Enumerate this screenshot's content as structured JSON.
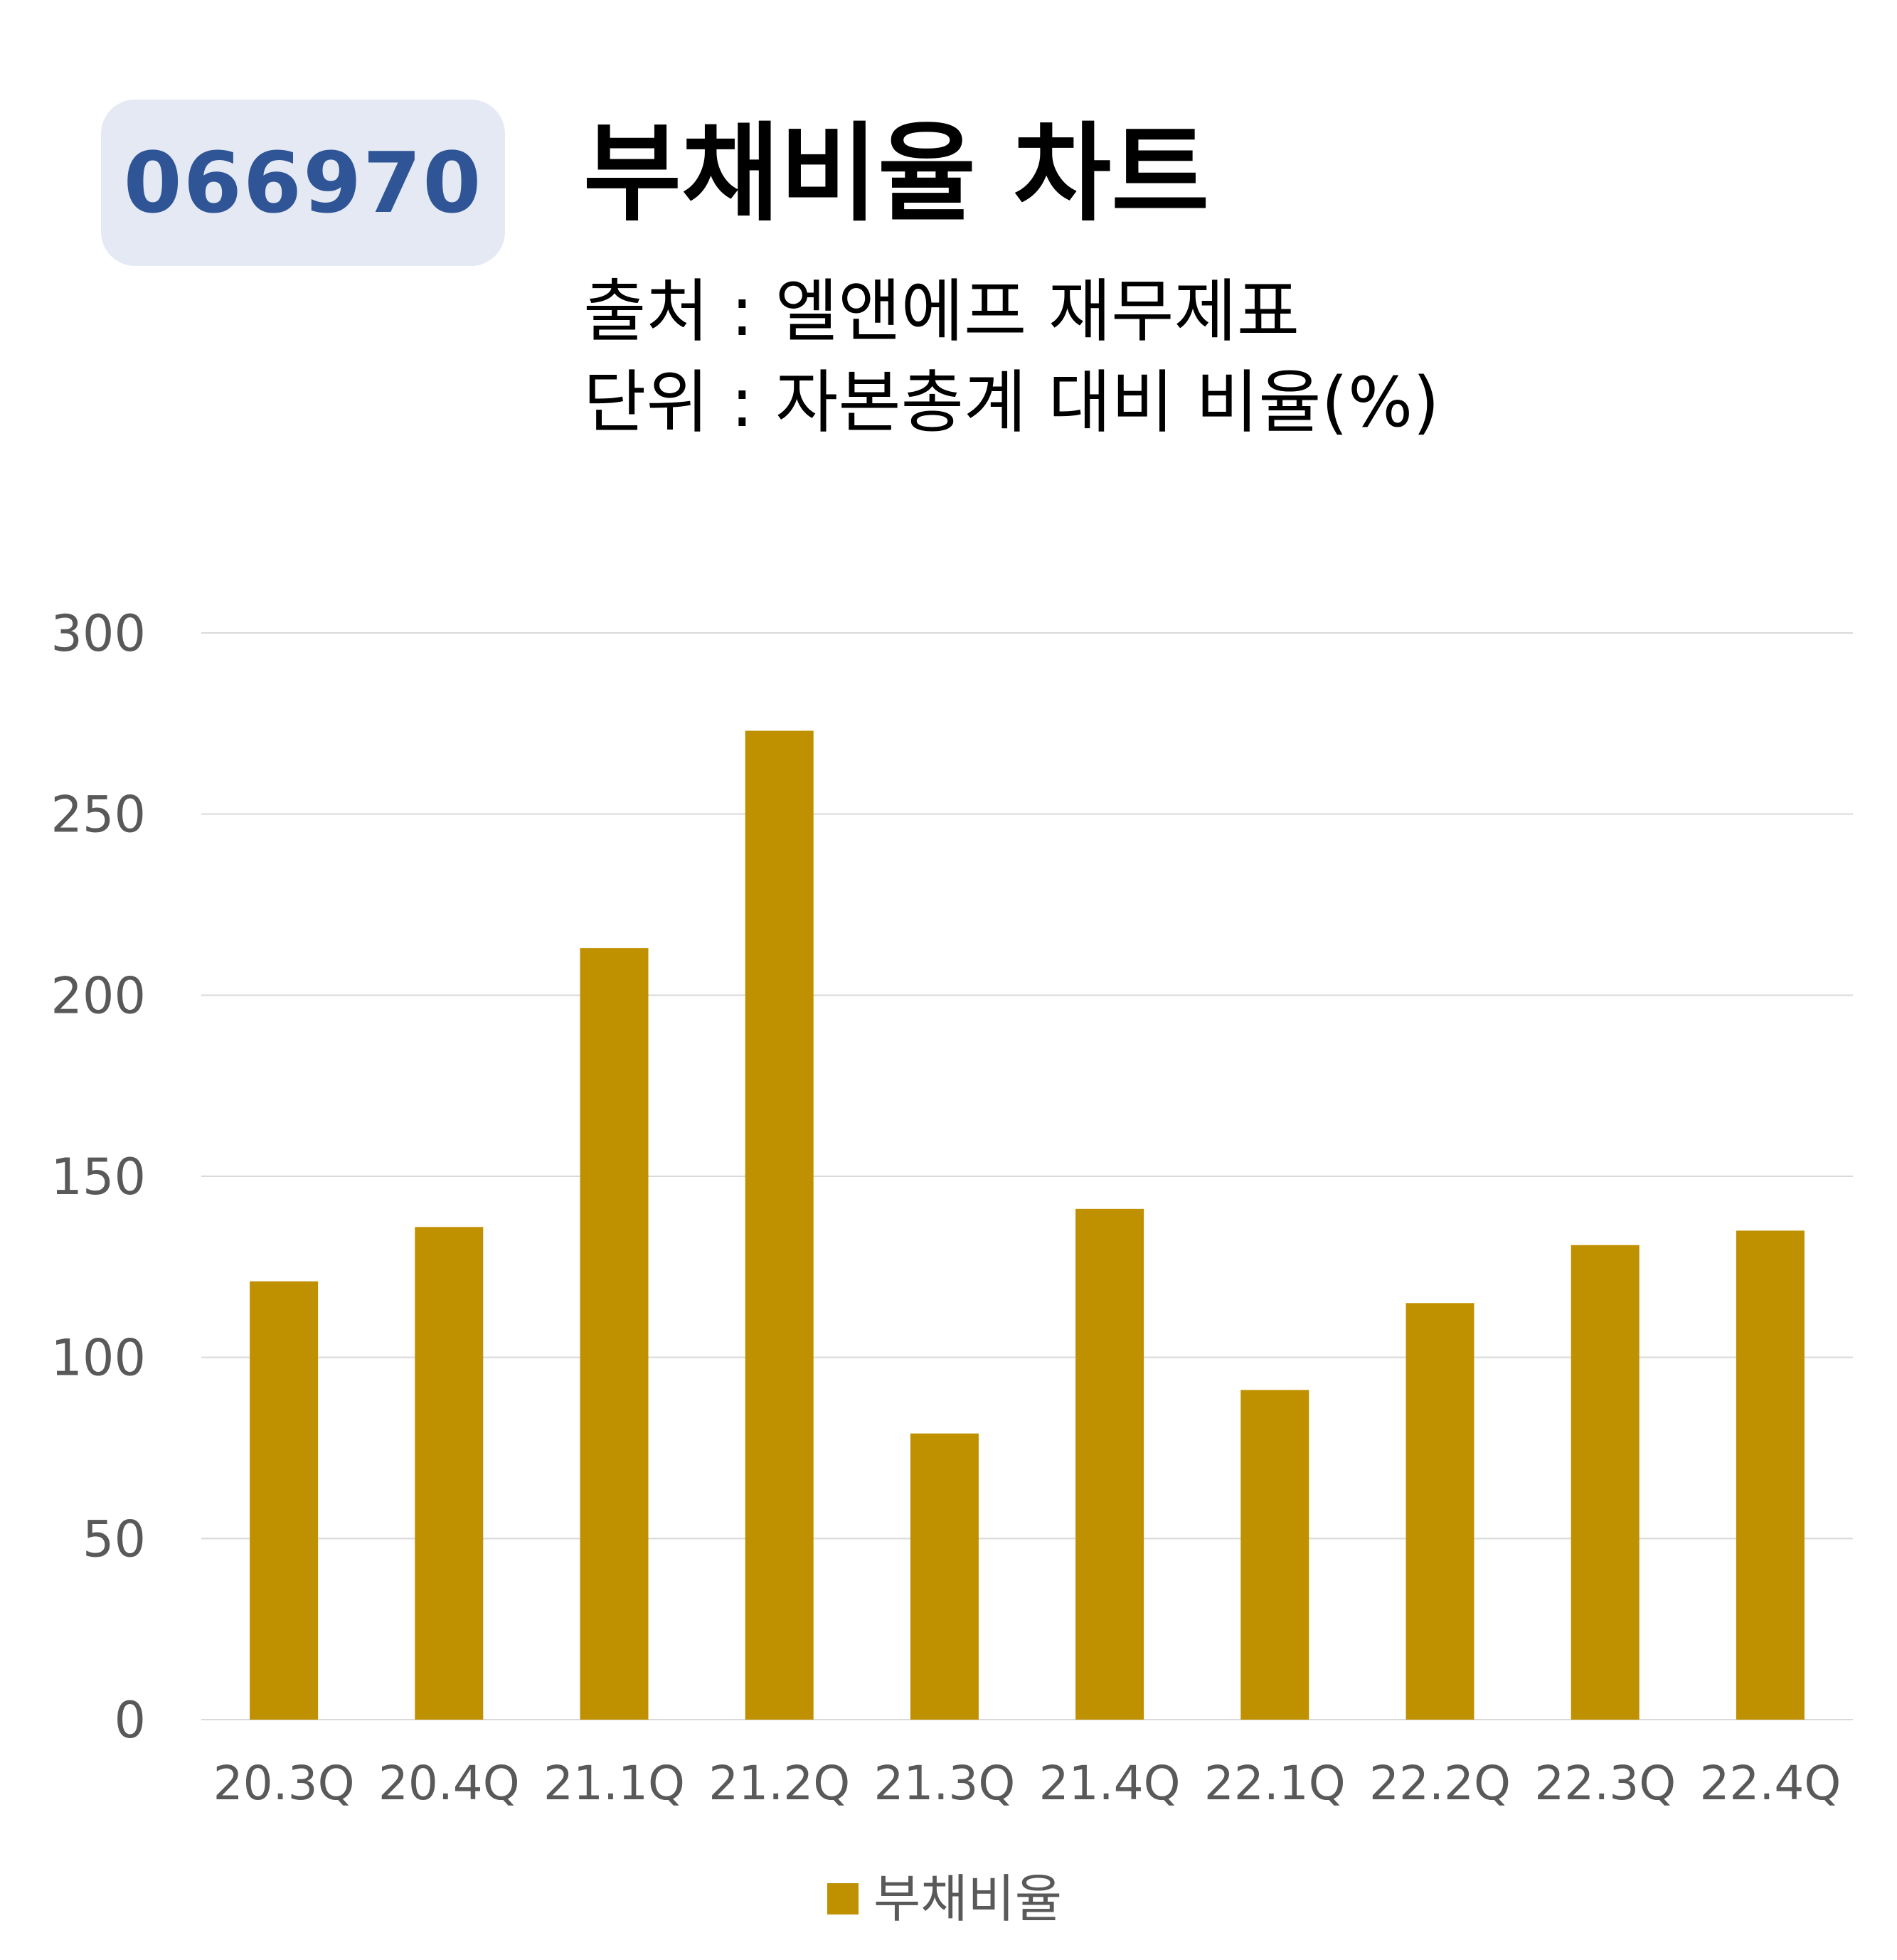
{
  "badge": "066970",
  "title": "부채비율 차트",
  "source": "출처 : 엘앤에프 재무제표",
  "unit": "단위 : 자본총계 대비 비율(%)",
  "chart_data": {
    "type": "bar",
    "categories": [
      "20.3Q",
      "20.4Q",
      "21.1Q",
      "21.2Q",
      "21.3Q",
      "21.4Q",
      "22.1Q",
      "22.2Q",
      "22.3Q",
      "22.4Q"
    ],
    "series": [
      {
        "name": "부채비율",
        "values": [
          121,
          136,
          213,
          273,
          79,
          141,
          91,
          115,
          131,
          135
        ]
      }
    ],
    "ylim": [
      0,
      300
    ],
    "yticks": [
      0,
      50,
      100,
      150,
      200,
      250,
      300
    ],
    "grid": true,
    "legend": "bottom",
    "bar_color": "#bf9000",
    "grid_color": "#d9d9d9",
    "tick_color": "#595959"
  }
}
